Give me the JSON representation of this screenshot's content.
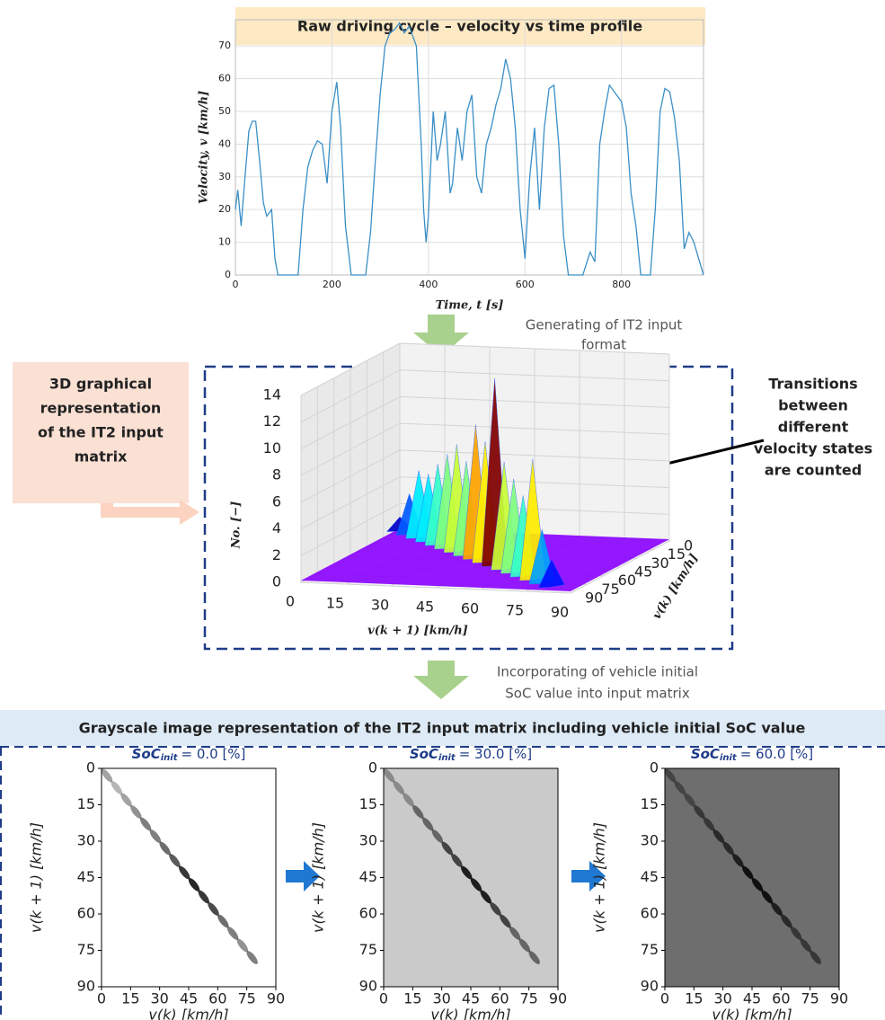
{
  "chart_data": [
    {
      "type": "line",
      "title": "Raw driving cycle – velocity vs time profile",
      "x_label": "Time, t [s]",
      "y_label": "Velocity, v [km/h]",
      "x": [
        0,
        5,
        12,
        20,
        28,
        35,
        42,
        50,
        58,
        65,
        75,
        82,
        88,
        100,
        120,
        130,
        140,
        150,
        160,
        170,
        180,
        190,
        200,
        210,
        218,
        228,
        240,
        260,
        270,
        280,
        290,
        300,
        310,
        320,
        330,
        340,
        350,
        360,
        375,
        385,
        390,
        395,
        400,
        410,
        418,
        425,
        435,
        445,
        450,
        460,
        470,
        480,
        490,
        500,
        510,
        520,
        530,
        540,
        550,
        560,
        570,
        580,
        590,
        600,
        610,
        620,
        630,
        640,
        650,
        660,
        670,
        680,
        690,
        700,
        720,
        735,
        745,
        755,
        765,
        775,
        790,
        800,
        810,
        820,
        830,
        840,
        845,
        860,
        870,
        880,
        890,
        900,
        910,
        920,
        930,
        940,
        950,
        960,
        970
      ],
      "series": [
        {
          "color": "#3a8fc7",
          "values": [
            20,
            26,
            15,
            30,
            44,
            47,
            47,
            35,
            22,
            18,
            20,
            5,
            0,
            0,
            0,
            0,
            20,
            33,
            38,
            41,
            40,
            28,
            50,
            59,
            45,
            15,
            0,
            0,
            0,
            13,
            35,
            55,
            70,
            74,
            75,
            77,
            74,
            76,
            70,
            40,
            20,
            10,
            18,
            50,
            35,
            40,
            50,
            25,
            28,
            45,
            35,
            50,
            55,
            30,
            25,
            40,
            45,
            52,
            57,
            66,
            60,
            45,
            20,
            5,
            30,
            45,
            20,
            45,
            57,
            58,
            40,
            12,
            0,
            0,
            0,
            7,
            4,
            40,
            50,
            58,
            55,
            53,
            45,
            25,
            15,
            0,
            0,
            0,
            20,
            50,
            57,
            56,
            48,
            35,
            8,
            13,
            10,
            5,
            0
          ]
        }
      ],
      "xlim": [
        0,
        970
      ],
      "ylim": [
        0,
        78
      ],
      "xticks": [
        0,
        200,
        400,
        600,
        800
      ],
      "yticks": [
        0,
        10,
        20,
        30,
        40,
        50,
        60,
        70
      ],
      "grid": true
    },
    {
      "type": "surface3d",
      "x_label": "v(k + 1) [km/h]",
      "y_label": "v(k) [km/h]",
      "z_label": "No. [−]",
      "xlim": [
        0,
        90
      ],
      "ylim": [
        0,
        90
      ],
      "zlim": [
        0,
        14
      ],
      "xticks": [
        0,
        15,
        30,
        45,
        60,
        75,
        90
      ],
      "yticks": [
        0,
        15,
        30,
        45,
        60,
        75,
        90
      ],
      "zticks": [
        0,
        2,
        4,
        6,
        8,
        10,
        12,
        14
      ],
      "x": [
        0,
        5,
        10,
        15,
        20,
        25,
        30,
        35,
        40,
        45,
        50,
        55,
        60,
        65,
        70,
        75,
        80
      ],
      "values": [
        1,
        3,
        5,
        5,
        6,
        7,
        8,
        7,
        10,
        9,
        14,
        8,
        7,
        6,
        9,
        4,
        2
      ],
      "floor_color": "#8a00ff"
    },
    {
      "type": "heatmap",
      "title": "SoC",
      "title_sub": "init",
      "title_rest": "= 0.0 [%]",
      "background": "#ffffff",
      "x_label": "v(k) [km/h]",
      "y_label": "v(k + 1) [km/h]",
      "xlim": [
        0,
        90
      ],
      "ylim": [
        0,
        90
      ],
      "y_inverted": true,
      "xticks": [
        0,
        15,
        30,
        45,
        60,
        75,
        90
      ],
      "yticks": [
        0,
        15,
        30,
        45,
        60,
        75,
        90
      ],
      "x": [
        0,
        5,
        10,
        15,
        20,
        25,
        30,
        35,
        40,
        45,
        50,
        55,
        60,
        65,
        70,
        75
      ],
      "values": [
        3,
        2,
        3,
        4,
        5,
        5,
        6,
        7,
        9,
        10,
        9,
        8,
        6,
        5,
        4,
        5
      ]
    },
    {
      "type": "heatmap",
      "title": "SoC",
      "title_sub": "init",
      "title_rest": "= 30.0 [%]",
      "background": "#cacaca",
      "x_label": "v(k) [km/h]",
      "y_label": "v(k + 1) [km/h]",
      "xlim": [
        0,
        90
      ],
      "ylim": [
        0,
        90
      ],
      "y_inverted": true,
      "xticks": [
        0,
        15,
        30,
        45,
        60,
        75,
        90
      ],
      "yticks": [
        0,
        15,
        30,
        45,
        60,
        75,
        90
      ],
      "x": [
        0,
        5,
        10,
        15,
        20,
        25,
        30,
        35,
        40,
        45,
        50,
        55,
        60,
        65,
        70,
        75
      ],
      "values": [
        1,
        1,
        1,
        2,
        2,
        2,
        3,
        3,
        4,
        4,
        4,
        3,
        3,
        2,
        2,
        2
      ]
    },
    {
      "type": "heatmap",
      "title": "SoC",
      "title_sub": "init",
      "title_rest": "= 60.0 [%]",
      "background": "#6e6e6e",
      "x_label": "v(k) [km/h]",
      "y_label": "v(k + 1) [km/h]",
      "xlim": [
        0,
        90
      ],
      "ylim": [
        0,
        90
      ],
      "y_inverted": true,
      "xticks": [
        0,
        15,
        30,
        45,
        60,
        75,
        90
      ],
      "yticks": [
        0,
        15,
        30,
        45,
        60,
        75,
        90
      ],
      "x": [
        0,
        5,
        10,
        15,
        20,
        25,
        30,
        35,
        40,
        45,
        50,
        55,
        60,
        65,
        70,
        75
      ],
      "values": [
        2,
        2,
        2,
        3,
        3,
        4,
        4,
        5,
        6,
        6,
        6,
        5,
        4,
        3,
        3,
        3
      ]
    }
  ],
  "diagram": {
    "generating_note": [
      "Generating of IT2 input",
      "format"
    ],
    "left_box": [
      "3D graphical",
      "representation",
      "of the IT2 input",
      "matrix"
    ],
    "transitions_note": [
      "Transitions",
      "between",
      "different",
      "velocity states",
      "are counted"
    ],
    "incorporating_note": [
      "Incorporating of vehicle initial",
      "SoC value into input matrix"
    ],
    "grayscale_header": "Grayscale image representation of the IT2 input matrix including vehicle initial SoC value"
  }
}
